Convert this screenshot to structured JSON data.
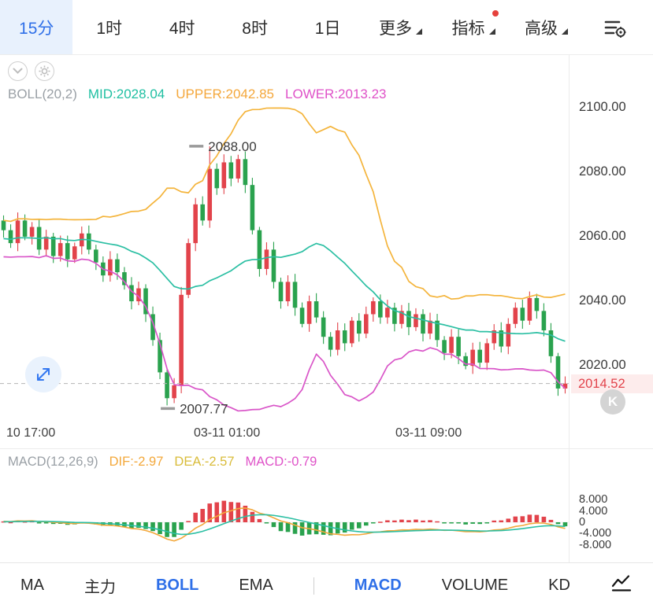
{
  "header": {
    "tabs": [
      {
        "label": "15分",
        "active": true
      },
      {
        "label": "1时"
      },
      {
        "label": "4时"
      },
      {
        "label": "8时"
      },
      {
        "label": "1日"
      },
      {
        "label": "更多",
        "dropdown": true
      },
      {
        "label": "指标",
        "dropdown": true,
        "badge": true
      },
      {
        "label": "高级",
        "dropdown": true
      }
    ]
  },
  "boll_row": {
    "name": "BOLL(20,2)",
    "mid": "MID:2028.04",
    "upper": "UPPER:2042.85",
    "lower": "LOWER:2013.23"
  },
  "macd_row": {
    "name": "MACD(12,26,9)",
    "dif": "DIF:-2.97",
    "dea": "DEA:-2.57",
    "macd": "MACD:-0.79"
  },
  "current_price": {
    "value": "2014.52"
  },
  "k_badge": {
    "label": "K"
  },
  "bottom_bar": {
    "tabs": [
      {
        "label": "MA"
      },
      {
        "label": "主力"
      },
      {
        "label": "BOLL",
        "active": true
      },
      {
        "label": "EMA"
      },
      {
        "label": "MACD",
        "active": true
      },
      {
        "label": "VOLUME"
      },
      {
        "label": "KD"
      }
    ]
  },
  "ui_colors": {
    "accent_blue": "#2e6fe8",
    "up_red": "#e2434b",
    "down_green": "#2aa24e",
    "price_tag_bg": "#fdecec",
    "badge_red": "#e5413c"
  },
  "chart_data": {
    "type": "candlestick",
    "timeframe": "15分",
    "closes": [
      2062,
      2058,
      2065,
      2060,
      2063,
      2056,
      2060,
      2054,
      2058,
      2053,
      2057,
      2061,
      2056,
      2052,
      2048,
      2053,
      2049,
      2045,
      2040,
      2044,
      2036,
      2028,
      2018,
      2010,
      2014,
      2042,
      2058,
      2070,
      2065,
      2081,
      2075,
      2083,
      2078,
      2084,
      2076,
      2062,
      2050,
      2056,
      2046,
      2040,
      2046,
      2038,
      2033,
      2040,
      2035,
      2029,
      2025,
      2031,
      2027,
      2034,
      2030,
      2036,
      2040,
      2035,
      2038,
      2033,
      2037,
      2032,
      2036,
      2030,
      2034,
      2028,
      2024,
      2029,
      2023,
      2020,
      2025,
      2021,
      2027,
      2031,
      2026,
      2033,
      2038,
      2034,
      2041,
      2037,
      2031,
      2023,
      2013,
      2014.52
    ],
    "warmup_closes": [
      2058,
      2062,
      2056,
      2060,
      2064,
      2059,
      2055,
      2061,
      2057,
      2063,
      2059,
      2054,
      2058,
      2062,
      2057,
      2061,
      2056,
      2060,
      2063,
      2059
    ],
    "ylim": [
      2003,
      2115
    ],
    "y_ticks": [
      "2100.00",
      "2080.00",
      "2060.00",
      "2040.00",
      "2020.00"
    ],
    "x_labels": [
      "10 17:00",
      "03-11 01:00",
      "03-11 09:00"
    ],
    "high_marker": {
      "index": 29,
      "price": 2088.0,
      "label": "2088.00"
    },
    "low_marker": {
      "index": 23,
      "price": 2007.77,
      "label": "2007.77"
    },
    "boll": {
      "period": 20,
      "mult": 2
    },
    "macd": {
      "fast": 12,
      "slow": 26,
      "signal": 9,
      "y_ticks": [
        "8.000",
        "4.000",
        "0",
        "-4.000",
        "-8.000"
      ]
    },
    "colors": {
      "up": "#e2434b",
      "down": "#2aa24e",
      "upper_band": "#f4b43b",
      "mid_band": "#2bbfa3",
      "lower_band": "#d955c8",
      "dif_line": "#f3a83b",
      "dea_line": "#2bbfa3"
    }
  }
}
